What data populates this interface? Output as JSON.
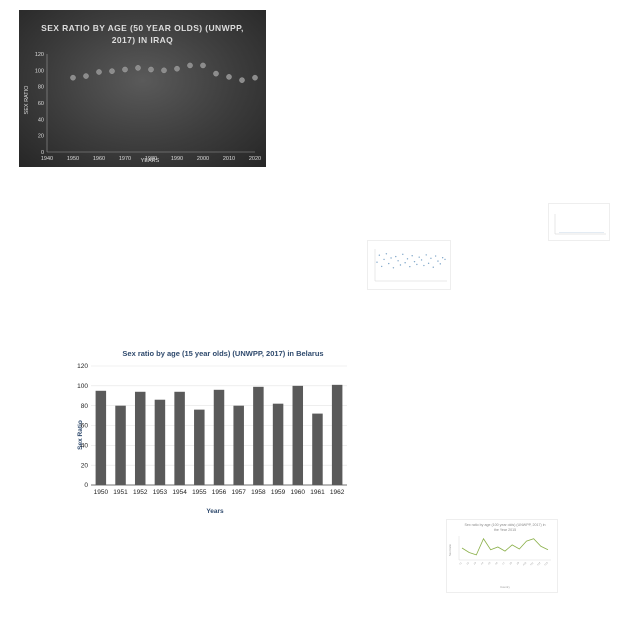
{
  "chart_data": [
    {
      "type": "scatter",
      "title": "SEX RATIO BY AGE (50 YEAR OLDS) (UNWPP, 2017) IN IRAQ",
      "xlabel": "YEARS",
      "ylabel": "SEX RATIO",
      "xlim": [
        1940,
        2020
      ],
      "ylim": [
        0,
        120
      ],
      "x_ticks": [
        "1940",
        "1950",
        "1960",
        "1970",
        "1980",
        "1990",
        "2000",
        "2010",
        "2020"
      ],
      "y_ticks": [
        "0",
        "20",
        "40",
        "60",
        "80",
        "100",
        "120"
      ],
      "x": [
        1950,
        1955,
        1960,
        1965,
        1970,
        1975,
        1980,
        1985,
        1990,
        1995,
        2000,
        2005,
        2010,
        2015,
        2020
      ],
      "y": [
        91,
        93,
        98,
        99,
        101,
        103,
        101,
        100,
        102,
        106,
        106,
        96,
        92,
        88,
        91
      ],
      "colors": {
        "background": "#3c3c3c",
        "marker": "#8c8c8c",
        "text": "#dddddd"
      }
    },
    {
      "type": "line",
      "title": "",
      "xlabel": "",
      "ylabel": "",
      "series": [],
      "note": ""
    },
    {
      "type": "scatter",
      "title": "",
      "xlabel": "",
      "ylabel": "",
      "x": [
        0,
        1,
        2,
        3,
        4,
        5,
        6,
        7,
        8,
        9,
        10,
        11,
        12,
        13,
        14,
        15,
        16,
        17,
        18,
        19,
        20,
        21,
        22,
        23,
        24,
        25,
        26,
        27,
        28,
        29
      ],
      "y": [
        60,
        85,
        45,
        70,
        90,
        55,
        75,
        40,
        80,
        65,
        50,
        88,
        58,
        72,
        44,
        83,
        62,
        52,
        78,
        68,
        48,
        86,
        56,
        74,
        42,
        82,
        64,
        54,
        76,
        70
      ],
      "colors": {
        "marker": "#7fa6c9"
      }
    },
    {
      "type": "bar",
      "title": "Sex ratio by age (15 year olds) (UNWPP, 2017) in Belarus",
      "xlabel": "Years",
      "ylabel": "Sex Ratio",
      "ylim": [
        0,
        120
      ],
      "y_ticks": [
        "0",
        "20",
        "40",
        "60",
        "80",
        "100",
        "120"
      ],
      "categories": [
        "1950",
        "1951",
        "1952",
        "1953",
        "1954",
        "1955",
        "1956",
        "1957",
        "1958",
        "1959",
        "1960",
        "1961",
        "1962"
      ],
      "values": [
        95,
        80,
        94,
        86,
        94,
        76,
        96,
        80,
        99,
        82,
        100,
        72,
        101
      ],
      "colors": {
        "bar": "#5a5a5a",
        "grid": "#e3e3e3",
        "title": "#2f4a6d"
      }
    },
    {
      "type": "line",
      "title_lines": [
        "Sex ratio by age (100 year olds) (UNWPP, 2017) in",
        "the Year 2015"
      ],
      "xlabel": "Country",
      "ylabel": "Sex Ratio",
      "categories": [
        "c1",
        "c2",
        "c3",
        "c4",
        "c5",
        "c6",
        "c7",
        "c8",
        "c9",
        "c10",
        "c11",
        "c12",
        "c13"
      ],
      "values": [
        35,
        22,
        15,
        62,
        30,
        38,
        26,
        44,
        32,
        55,
        62,
        40,
        30
      ],
      "colors": {
        "line": "#8bb04a"
      }
    }
  ]
}
